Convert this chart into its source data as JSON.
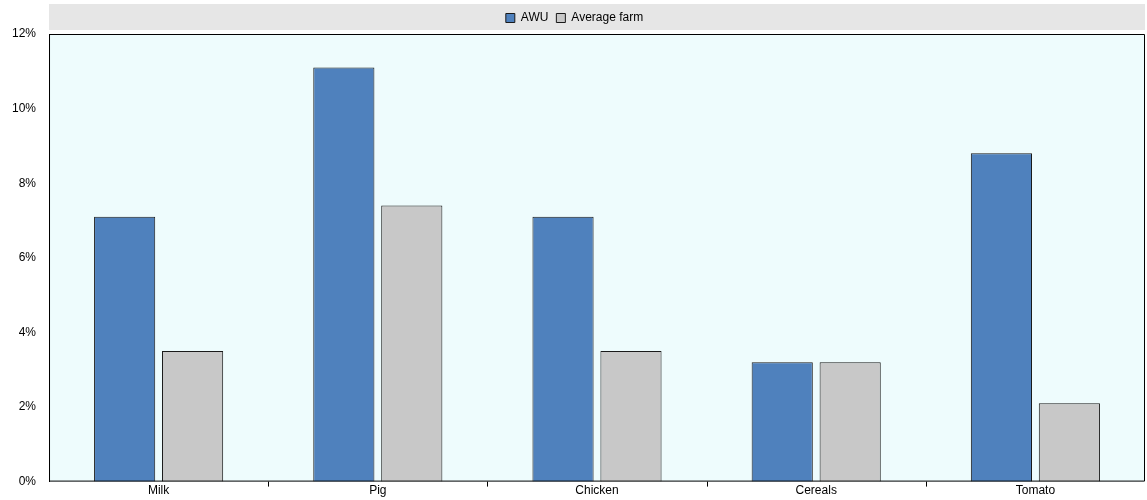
{
  "chart_data": {
    "type": "bar",
    "categories": [
      "Milk",
      "Pig",
      "Chicken",
      "Cereals",
      "Tomato"
    ],
    "series": [
      {
        "name": "AWU",
        "color": "#4f81bd",
        "values": [
          7.1,
          11.1,
          7.1,
          3.2,
          8.8
        ]
      },
      {
        "name": "Average farm",
        "color": "#c8c8c8",
        "values": [
          3.5,
          7.4,
          3.5,
          3.2,
          2.1
        ]
      }
    ],
    "ylim": [
      0,
      12
    ],
    "yticks": [
      {
        "value": 0,
        "label": "0%"
      },
      {
        "value": 2,
        "label": "2%"
      },
      {
        "value": 4,
        "label": "4%"
      },
      {
        "value": 6,
        "label": "6%"
      },
      {
        "value": 8,
        "label": "8%"
      },
      {
        "value": 10,
        "label": "10%"
      },
      {
        "value": 12,
        "label": "12%"
      }
    ],
    "grid": false,
    "legend": "top"
  }
}
